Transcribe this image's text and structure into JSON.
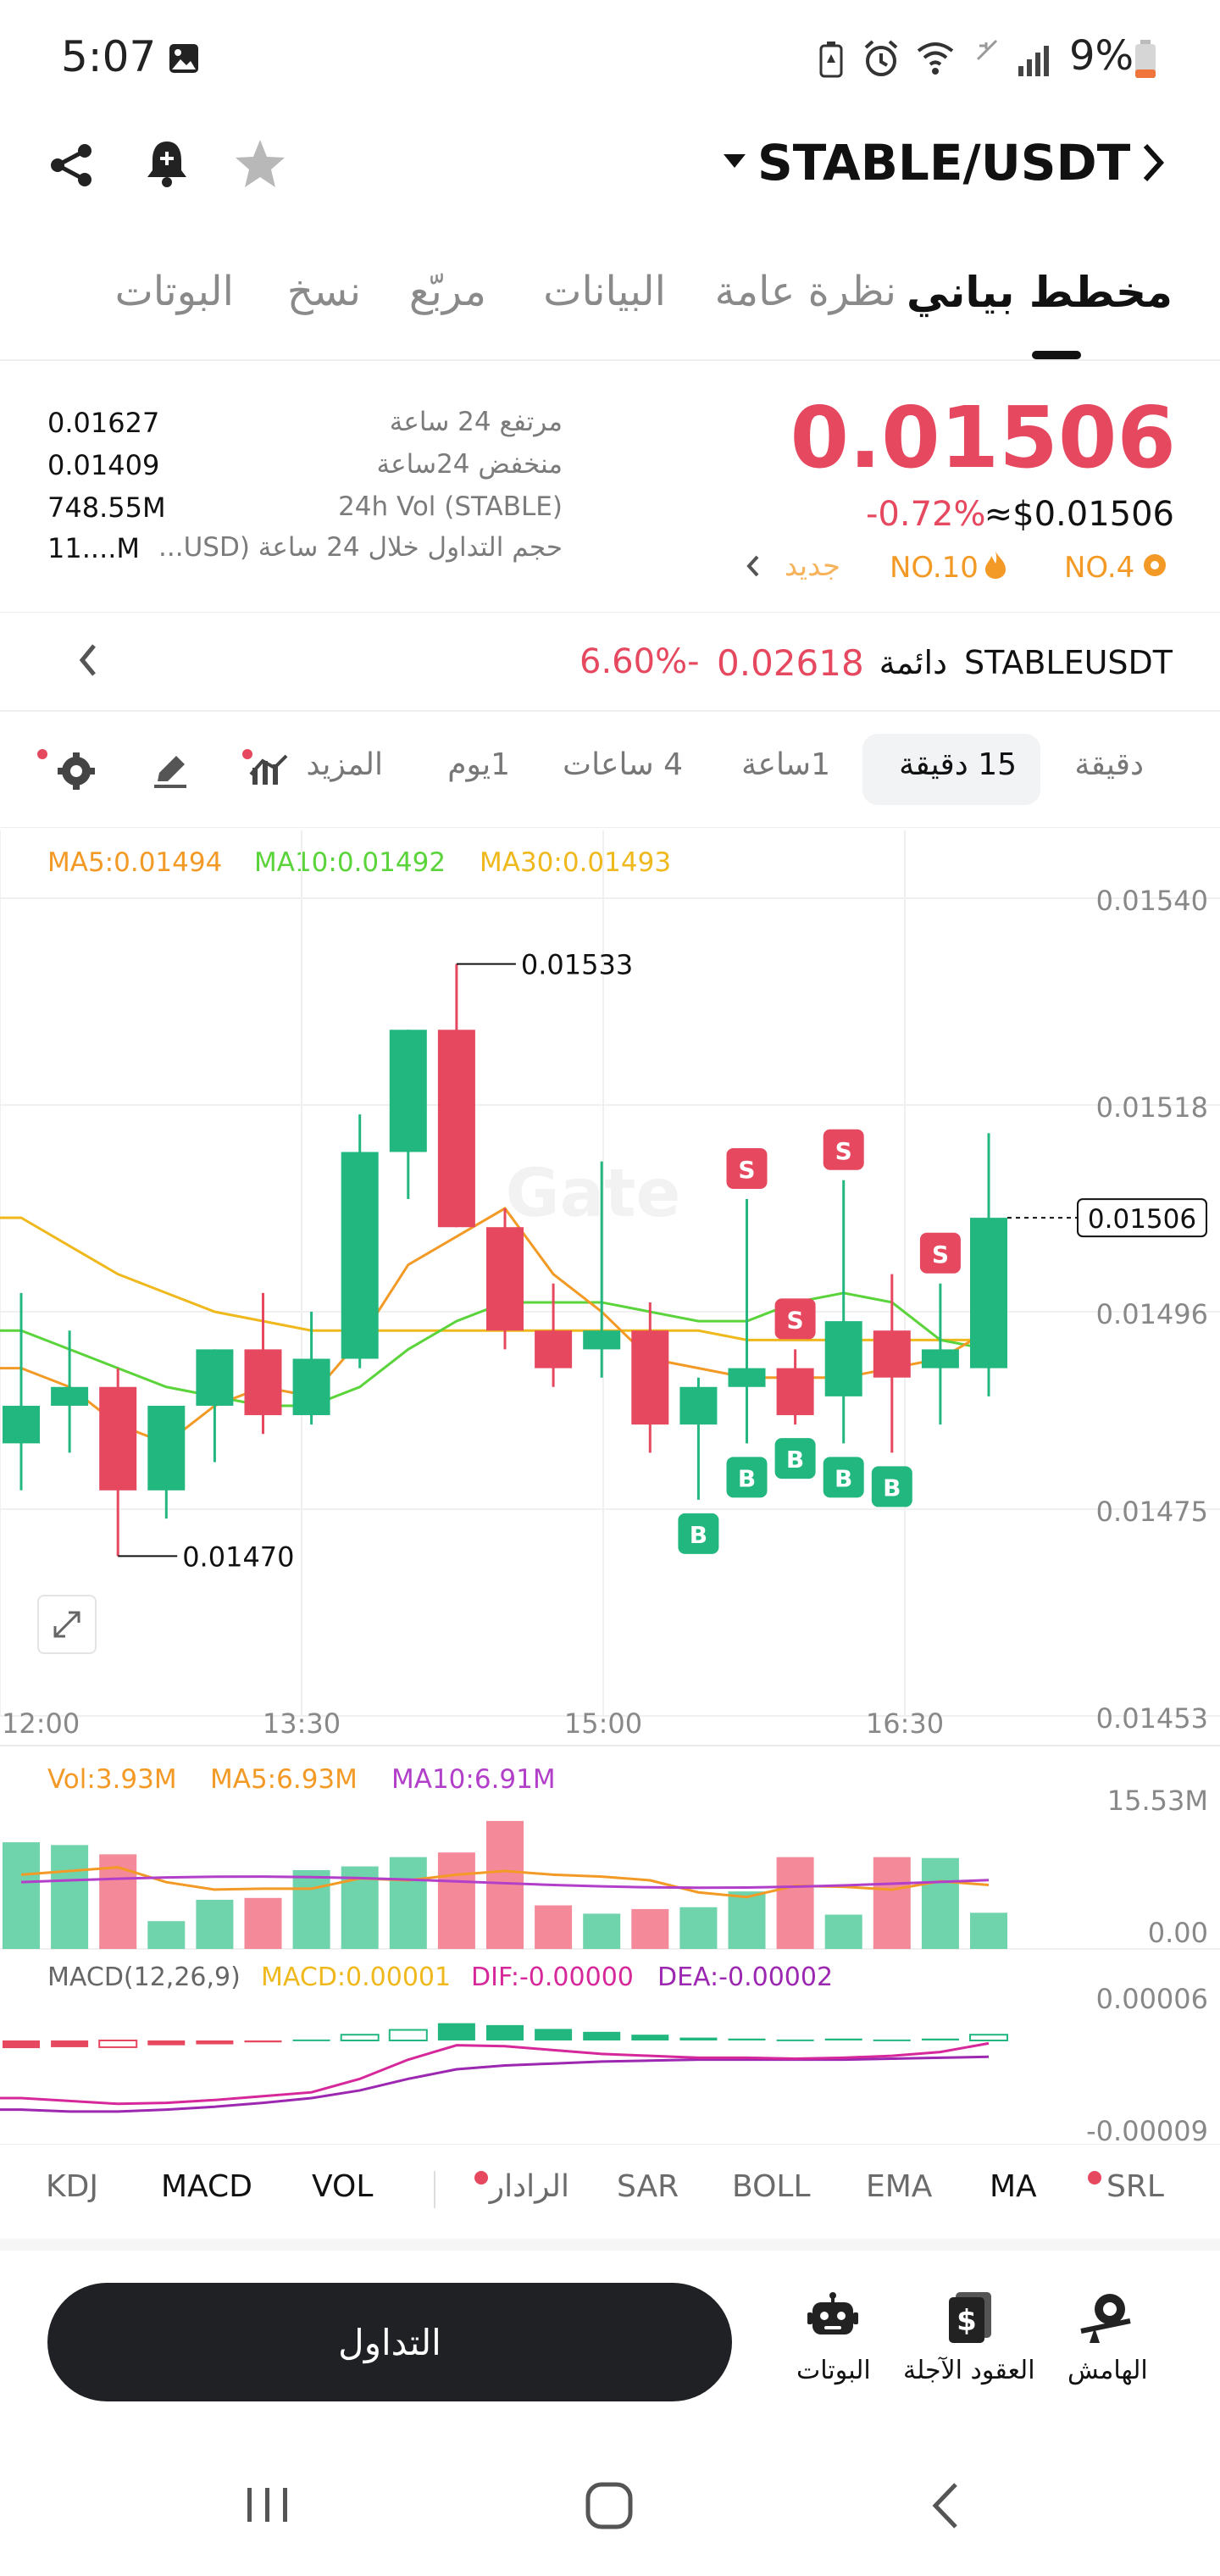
{
  "status_bar": {
    "time": "5:07",
    "battery": "9%"
  },
  "header": {
    "pair": "STABLE/USDT"
  },
  "tabs": [
    {
      "label": "مخطط بياني",
      "active": true
    },
    {
      "label": "نظرة عامة",
      "active": false
    },
    {
      "label": "البيانات",
      "active": false
    },
    {
      "label": "مربّع",
      "active": false
    },
    {
      "label": "نسخ",
      "active": false
    },
    {
      "label": "البوتات",
      "active": false
    }
  ],
  "price": {
    "last": "0.01506",
    "change": "-0.72%",
    "usd": "≈$0.01506",
    "tag1": "NO.4",
    "tag2": "NO.10",
    "tag3": "جديد"
  },
  "stats": [
    {
      "label": "مرتفع 24 ساعة",
      "value": "0.01627"
    },
    {
      "label": "منخفض 24ساعة",
      "value": "0.01409"
    },
    {
      "label": "24h Vol (STABLE)",
      "value": "748.55M"
    },
    {
      "label": "حجم التداول خلال 24 ساعة (USD...",
      "value": "11....M"
    }
  ],
  "perpetual": {
    "symbol": "STABLEUSDT",
    "kind": "دائمة",
    "price": "0.02618",
    "change": "6.60%-"
  },
  "timeframes": [
    {
      "label": "دقيقة",
      "active": false
    },
    {
      "label": "15 دقيقة",
      "active": true
    },
    {
      "label": "1ساعة",
      "active": false
    },
    {
      "label": "4 ساعات",
      "active": false
    },
    {
      "label": "1يوم",
      "active": false
    },
    {
      "label": "المزيد",
      "active": false
    }
  ],
  "ma_legend": {
    "ma5": "MA5:0.01494",
    "ma10": "MA10:0.01492",
    "ma30": "MA30:0.01493"
  },
  "watermark": "Gate",
  "chart_data": {
    "type": "candlestick",
    "interval": "15m",
    "y_ticks": [
      "0.01540",
      "0.01518",
      "0.01496",
      "0.01475",
      "0.01453"
    ],
    "ylim": [
      0.01453,
      0.0154
    ],
    "x_ticks": [
      "12:00",
      "13:30",
      "15:00",
      "16:30"
    ],
    "high_marker": "0.01533",
    "low_marker": "0.01470",
    "current_price_label": "0.01506",
    "candles": [
      {
        "o": 0.01482,
        "h": 0.01498,
        "l": 0.01477,
        "c": 0.01486
      },
      {
        "o": 0.01486,
        "h": 0.01494,
        "l": 0.01481,
        "c": 0.01488
      },
      {
        "o": 0.01488,
        "h": 0.0149,
        "l": 0.0147,
        "c": 0.01477
      },
      {
        "o": 0.01477,
        "h": 0.01486,
        "l": 0.01474,
        "c": 0.01486
      },
      {
        "o": 0.01486,
        "h": 0.01492,
        "l": 0.0148,
        "c": 0.01492
      },
      {
        "o": 0.01492,
        "h": 0.01498,
        "l": 0.01483,
        "c": 0.01485
      },
      {
        "o": 0.01485,
        "h": 0.01496,
        "l": 0.01484,
        "c": 0.01491
      },
      {
        "o": 0.01491,
        "h": 0.01517,
        "l": 0.0149,
        "c": 0.01513
      },
      {
        "o": 0.01513,
        "h": 0.01526,
        "l": 0.01508,
        "c": 0.01526
      },
      {
        "o": 0.01526,
        "h": 0.01533,
        "l": 0.01505,
        "c": 0.01505
      },
      {
        "o": 0.01505,
        "h": 0.01507,
        "l": 0.01492,
        "c": 0.01494
      },
      {
        "o": 0.01494,
        "h": 0.01499,
        "l": 0.01488,
        "c": 0.0149
      },
      {
        "o": 0.01492,
        "h": 0.01512,
        "l": 0.01489,
        "c": 0.01494
      },
      {
        "o": 0.01494,
        "h": 0.01497,
        "l": 0.01481,
        "c": 0.01484
      },
      {
        "o": 0.01484,
        "h": 0.01489,
        "l": 0.01476,
        "c": 0.01488
      },
      {
        "o": 0.01488,
        "h": 0.01508,
        "l": 0.01482,
        "c": 0.0149
      },
      {
        "o": 0.0149,
        "h": 0.01492,
        "l": 0.01484,
        "c": 0.01485
      },
      {
        "o": 0.01487,
        "h": 0.0151,
        "l": 0.01482,
        "c": 0.01495
      },
      {
        "o": 0.01494,
        "h": 0.015,
        "l": 0.01481,
        "c": 0.01489
      },
      {
        "o": 0.0149,
        "h": 0.01499,
        "l": 0.01484,
        "c": 0.01492
      },
      {
        "o": 0.0149,
        "h": 0.01515,
        "l": 0.01487,
        "c": 0.01506
      }
    ],
    "ma5": [
      0.0149,
      0.01488,
      0.01484,
      0.01482,
      0.01486,
      0.01488,
      0.01487,
      0.01493,
      0.01501,
      0.01504,
      0.01507,
      0.015,
      0.01496,
      0.01491,
      0.0149,
      0.01489,
      0.01489,
      0.01489,
      0.0149,
      0.01491,
      0.01494
    ],
    "ma10": [
      0.01494,
      0.01492,
      0.0149,
      0.01488,
      0.01487,
      0.01486,
      0.01486,
      0.01488,
      0.01492,
      0.01495,
      0.01497,
      0.01497,
      0.01497,
      0.01496,
      0.01495,
      0.01495,
      0.01497,
      0.01498,
      0.01497,
      0.01493,
      0.01492
    ],
    "ma30": [
      0.01506,
      0.01503,
      0.015,
      0.01498,
      0.01496,
      0.01495,
      0.01494,
      0.01494,
      0.01494,
      0.01494,
      0.01494,
      0.01494,
      0.01494,
      0.01494,
      0.01494,
      0.01493,
      0.01493,
      0.01493,
      0.01493,
      0.01493,
      0.01493
    ],
    "signals": [
      {
        "candle": 14,
        "type": "B"
      },
      {
        "candle": 15,
        "type": "B"
      },
      {
        "candle": 15,
        "type": "S"
      },
      {
        "candle": 16,
        "type": "S"
      },
      {
        "candle": 16,
        "type": "B"
      },
      {
        "candle": 17,
        "type": "S"
      },
      {
        "candle": 17,
        "type": "B"
      },
      {
        "candle": 18,
        "type": "B"
      },
      {
        "candle": 19,
        "type": "S"
      }
    ]
  },
  "volume_panel": {
    "legend": {
      "vol": "Vol:3.93M",
      "ma5": "MA5:6.93M",
      "ma10": "MA10:6.91M"
    },
    "y_ticks": [
      "15.53M",
      "0.00"
    ],
    "ymax": 15.53,
    "values": [
      11.5,
      11.2,
      10.2,
      3.0,
      5.3,
      5.5,
      8.5,
      8.9,
      9.9,
      10.4,
      13.8,
      4.7,
      3.8,
      4.3,
      4.5,
      6.2,
      9.9,
      3.7,
      9.9,
      9.8,
      3.9
    ],
    "ma5": [
      8.0,
      8.4,
      8.8,
      7.2,
      6.4,
      6.5,
      6.5,
      7.6,
      7.4,
      8.0,
      8.4,
      8.0,
      7.8,
      7.4,
      6.1,
      5.6,
      6.8,
      6.7,
      6.4,
      7.3,
      6.9
    ]
  },
  "macd_panel": {
    "legend": {
      "title": "MACD(12,26,9)",
      "macd": "MACD:0.00001",
      "dif": "DIF:-0.00000",
      "dea": "DEA:-0.00002"
    },
    "y_ticks": [
      "0.00006",
      "-0.00009"
    ],
    "ylim": [
      -9e-05,
      6e-05
    ],
    "hist": [
      -8e-06,
      -7e-06,
      -7e-06,
      -5e-06,
      -4e-06,
      -2e-06,
      1e-06,
      6e-06,
      1.1e-05,
      1.8e-05,
      1.6e-05,
      1.2e-05,
      9e-06,
      6e-06,
      3e-06,
      2e-06,
      1e-06,
      2e-06,
      1e-06,
      2e-06,
      6e-06
    ],
    "dif": [
      -6e-05,
      -6.3e-05,
      -6.6e-05,
      -6.5e-05,
      -6.2e-05,
      -5.8e-05,
      -5.4e-05,
      -4e-05,
      -2e-05,
      -5e-06,
      -6e-06,
      -1e-05,
      -1.4e-05,
      -1.6e-05,
      -1.8e-05,
      -1.8e-05,
      -1.9e-05,
      -1.8e-05,
      -1.6e-05,
      -1.2e-05,
      -3e-06
    ],
    "dea": [
      -7.2e-05,
      -7.4e-05,
      -7.4e-05,
      -7.2e-05,
      -6.9e-05,
      -6.5e-05,
      -6e-05,
      -5.2e-05,
      -4e-05,
      -3e-05,
      -2.6e-05,
      -2.4e-05,
      -2.2e-05,
      -2.1e-05,
      -2e-05,
      -2e-05,
      -2e-05,
      -2e-05,
      -1.9e-05,
      -1.8e-05,
      -1.7e-05
    ]
  },
  "indicators": [
    {
      "label": "KDJ",
      "selected": false,
      "dot": false
    },
    {
      "label": "MACD",
      "selected": true,
      "dot": false
    },
    {
      "label": "VOL",
      "selected": true,
      "dot": false
    },
    {
      "label": "الرادار",
      "selected": false,
      "dot": true
    },
    {
      "label": "SAR",
      "selected": false,
      "dot": false
    },
    {
      "label": "BOLL",
      "selected": false,
      "dot": false
    },
    {
      "label": "EMA",
      "selected": false,
      "dot": false
    },
    {
      "label": "MA",
      "selected": true,
      "dot": false
    },
    {
      "label": "SRL",
      "selected": false,
      "dot": true
    }
  ],
  "bottom": {
    "trade_label": "التداول",
    "bots_label": "البوتات",
    "futures_label": "العقود الآجلة",
    "margin_label": "الهامش"
  },
  "colors": {
    "up": "#21b77f",
    "down": "#e5485f",
    "ma5": "#f39a26",
    "ma10": "#5ad43a",
    "ma30": "#efb81c",
    "vol_ma10": "#b23fc9",
    "dif": "#d6289a",
    "dea": "#9c27b0"
  }
}
